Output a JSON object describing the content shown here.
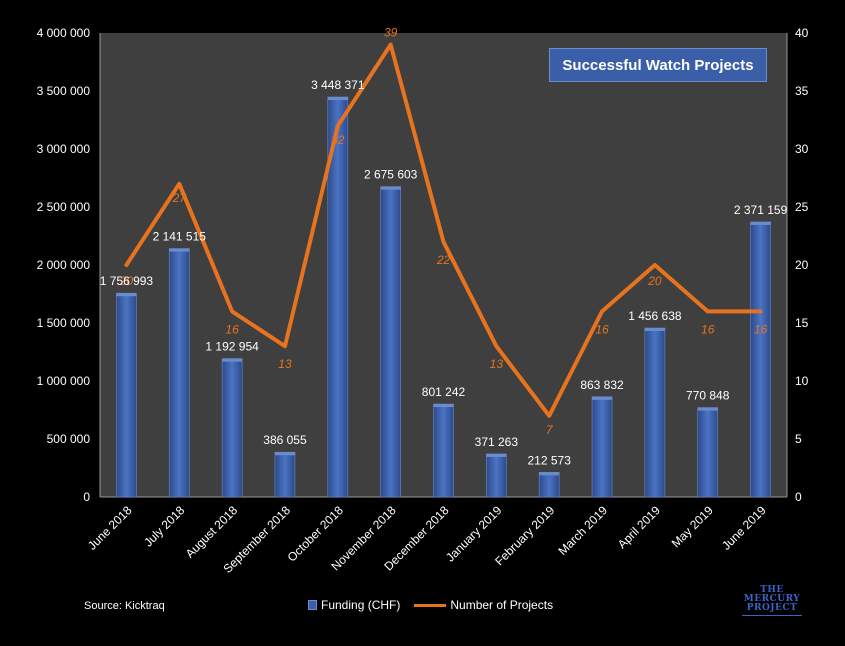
{
  "chart_data": {
    "type": "bar",
    "title": "Successful  Watch Projects",
    "categories": [
      "June 2018",
      "July 2018",
      "August 2018",
      "September 2018",
      "October 2018",
      "November 2018",
      "December 2018",
      "January 2019",
      "February 2019",
      "March 2019",
      "April 2019",
      "May 2019",
      "June 2019"
    ],
    "series": [
      {
        "name": "Funding (CHF)",
        "type": "bar",
        "axis": "left",
        "values": [
          1756993,
          2141515,
          1192954,
          386055,
          3448371,
          2675603,
          801242,
          371263,
          212573,
          863832,
          1456638,
          770848,
          2371159
        ],
        "labels": [
          "1 756 993",
          "2 141 515",
          "1 192 954",
          "386 055",
          "3 448 371",
          "2 675 603",
          "801 242",
          "371 263",
          "212 573",
          "863 832",
          "1 456 638",
          "770 848",
          "2 371 159"
        ],
        "color": "#3a5ea8"
      },
      {
        "name": "Number of Projects",
        "type": "line",
        "axis": "right",
        "values": [
          20,
          27,
          16,
          13,
          32,
          39,
          22,
          13,
          7,
          16,
          20,
          16,
          16
        ],
        "labels": [
          "20",
          "27",
          "16",
          "13",
          "32",
          "39",
          "22",
          "13",
          "7",
          "16",
          "20",
          "16",
          "16"
        ],
        "color": "#e8731f"
      }
    ],
    "left_axis": {
      "ylim": [
        0,
        4000000
      ],
      "ticks": [
        "0",
        "500 000",
        "1 000 000",
        "1 500 000",
        "2 000 000",
        "2 500 000",
        "3 000 000",
        "3 500 000",
        "4 000 000"
      ]
    },
    "right_axis": {
      "ylim": [
        0,
        40
      ],
      "ticks": [
        "0",
        "5",
        "10",
        "15",
        "20",
        "25",
        "30",
        "35",
        "40"
      ]
    },
    "grid": false,
    "legend_position": "bottom",
    "plot_background": "#3f3f3f"
  },
  "source": "Source:  Kicktraq",
  "logo": [
    "THE",
    "MERCURY",
    "PROJECT"
  ]
}
